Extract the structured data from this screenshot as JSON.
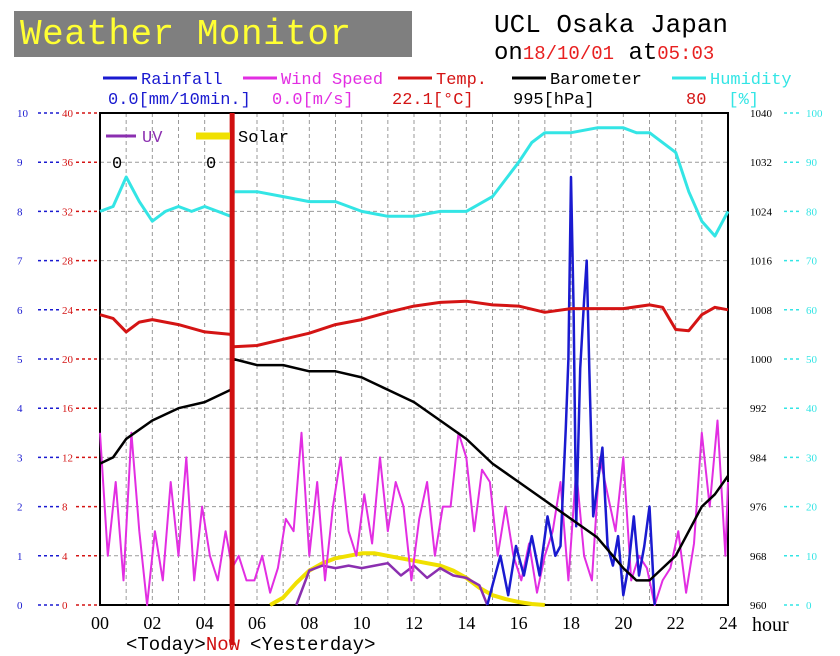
{
  "header": {
    "title": "Weather Monitor",
    "station": "UCL Osaka Japan",
    "on_label": "on",
    "date": "18/10/01",
    "at_label": "at",
    "time": "05:03",
    "hour_unit": "hour",
    "today_label": "<Today>",
    "now_label": "Now",
    "yesterday_label": "<Yesterday>"
  },
  "colors": {
    "rainfall": "#1a1ad0",
    "wind": "#e22ee2",
    "temp": "#d41414",
    "baro": "#000000",
    "humidity": "#33e5e5",
    "uv": "#8b2fb0",
    "solar": "#f0e000",
    "now_line": "#d01010",
    "grid": "#9a9a9a"
  },
  "chart_data": {
    "type": "line",
    "title": "Weather Monitor",
    "xlabel": "hour",
    "x_ticks": [
      "00",
      "02",
      "04",
      "06",
      "08",
      "10",
      "12",
      "14",
      "16",
      "18",
      "20",
      "22",
      "24"
    ],
    "xlim": [
      0,
      24
    ],
    "now_hour": 5.05,
    "axes": {
      "rainfall_mm": {
        "range": [
          0,
          10
        ],
        "ticks": [
          "0",
          "1",
          "2",
          "3",
          "4",
          "5",
          "6",
          "7",
          "8",
          "9",
          "10"
        ],
        "unit": "mm/10min."
      },
      "temperature_c": {
        "range": [
          0,
          40
        ],
        "ticks": [
          "0",
          "4",
          "8",
          "12",
          "16",
          "20",
          "24",
          "28",
          "32",
          "36",
          "40"
        ],
        "unit": "°C"
      },
      "barometer_hpa": {
        "range": [
          960,
          1040
        ],
        "ticks": [
          "960",
          "968",
          "976",
          "984",
          "992",
          "1000",
          "1008",
          "1016",
          "1024",
          "1032",
          "1040"
        ],
        "unit": "hPa"
      },
      "humidity_pct": {
        "range": [
          0,
          100
        ],
        "ticks": [
          "0",
          "10",
          "20",
          "30",
          "40",
          "50",
          "60",
          "70",
          "80",
          "90",
          "100"
        ],
        "unit": "%"
      }
    },
    "legend": [
      {
        "name": "Rainfall",
        "reading": "0.0",
        "unit": "[mm/10min.]"
      },
      {
        "name": "Wind Speed",
        "reading": "0.0",
        "unit": "[m/s]"
      },
      {
        "name": "Temp.",
        "reading": "22.1",
        "unit": "[°C]"
      },
      {
        "name": "Barometer",
        "reading": "995",
        "unit": "[hPa]"
      },
      {
        "name": "Humidity",
        "reading": "80",
        "unit": "[%]"
      },
      {
        "name": "UV",
        "reading": "0"
      },
      {
        "name": "Solar",
        "reading": "0"
      }
    ],
    "series": [
      {
        "name": "Humidity",
        "axis": "humidity_pct",
        "x": [
          0,
          0.5,
          1,
          1.5,
          2,
          2.5,
          3,
          3.5,
          4,
          4.5,
          5,
          5.1,
          6,
          7,
          8,
          9,
          10,
          11,
          12,
          13,
          14,
          15,
          16,
          16.5,
          17,
          18,
          19,
          20,
          20.5,
          21,
          22,
          22.5,
          23,
          23.5,
          24
        ],
        "y": [
          80,
          81,
          87,
          82,
          78,
          80,
          81,
          80,
          81,
          80,
          79,
          84,
          84,
          83,
          82,
          82,
          80,
          79,
          79,
          80,
          80,
          83,
          90,
          94,
          96,
          96,
          97,
          97,
          96,
          96,
          92,
          84,
          78,
          75,
          80
        ]
      },
      {
        "name": "Temp.",
        "axis": "temperature_c",
        "x": [
          0,
          0.5,
          1,
          1.5,
          2,
          3,
          4,
          5,
          5.1,
          6,
          7,
          8,
          9,
          10,
          11,
          12,
          13,
          14,
          15,
          16,
          17,
          18,
          19,
          20,
          21,
          21.5,
          22,
          22.5,
          23,
          23.5,
          24
        ],
        "y": [
          23.6,
          23.3,
          22.2,
          23.0,
          23.2,
          22.8,
          22.2,
          22.0,
          21.0,
          21.1,
          21.6,
          22.1,
          22.8,
          23.2,
          23.8,
          24.3,
          24.6,
          24.7,
          24.4,
          24.3,
          23.8,
          24.1,
          24.1,
          24.1,
          24.4,
          24.2,
          22.4,
          22.3,
          23.6,
          24.2,
          24.0
        ]
      },
      {
        "name": "Barometer",
        "axis": "barometer_hpa",
        "x": [
          0,
          0.5,
          1,
          2,
          3,
          4,
          5,
          5.1,
          6,
          7,
          8,
          9,
          10,
          11,
          12,
          13,
          14,
          15,
          16,
          17,
          18,
          19,
          20,
          20.5,
          21,
          21.5,
          22,
          22.5,
          23,
          23.5,
          24
        ],
        "y": [
          983,
          984,
          987,
          990,
          992,
          993,
          995,
          1000,
          999,
          999,
          998,
          998,
          997,
          995,
          993,
          990,
          987,
          983,
          980,
          977,
          974,
          971,
          966,
          964,
          964,
          966,
          968,
          972,
          976,
          978,
          981
        ]
      },
      {
        "name": "Wind Speed",
        "axis": "temperature_c",
        "x": [
          0,
          0.3,
          0.6,
          0.9,
          1.2,
          1.5,
          1.8,
          2.1,
          2.4,
          2.7,
          3,
          3.3,
          3.6,
          3.9,
          4.2,
          4.5,
          4.8,
          5.05,
          5.3,
          5.6,
          5.9,
          6.2,
          6.5,
          6.8,
          7.1,
          7.4,
          7.7,
          8,
          8.3,
          8.6,
          8.9,
          9.2,
          9.5,
          9.8,
          10.1,
          10.4,
          10.7,
          11,
          11.3,
          11.6,
          11.9,
          12.2,
          12.5,
          12.8,
          13.1,
          13.4,
          13.7,
          14,
          14.3,
          14.6,
          14.9,
          15.2,
          15.5,
          15.8,
          16.1,
          16.4,
          16.7,
          17,
          17.3,
          17.6,
          17.9,
          18.2,
          18.5,
          18.8,
          19.1,
          19.4,
          19.7,
          20,
          20.3,
          20.6,
          20.9,
          21.2,
          21.5,
          21.8,
          22.1,
          22.4,
          22.7,
          23,
          23.3,
          23.6,
          23.9,
          24
        ],
        "y": [
          14,
          4,
          10,
          2,
          14,
          6,
          0,
          6,
          2,
          10,
          4,
          12,
          2,
          8,
          4,
          2,
          6,
          3,
          4,
          2,
          2,
          4,
          1,
          3,
          7,
          6,
          14,
          4,
          10,
          2,
          8,
          12,
          6,
          4,
          9,
          5,
          12,
          6,
          10,
          8,
          2,
          7,
          10,
          4,
          8,
          8,
          14,
          12,
          6,
          11,
          10,
          4,
          8,
          4,
          2,
          5,
          1,
          4,
          6,
          10,
          2,
          11,
          4,
          2,
          12,
          9,
          6,
          12,
          2,
          4,
          3,
          0,
          2,
          3,
          6,
          1,
          5,
          14,
          8,
          15,
          4,
          10
        ]
      },
      {
        "name": "Rainfall",
        "axis": "rainfall_mm",
        "x": [
          14.8,
          15,
          15.3,
          15.6,
          15.9,
          16.2,
          16.5,
          16.8,
          17.1,
          17.4,
          17.6,
          17.8,
          17.9,
          18,
          18.1,
          18.2,
          18.35,
          18.5,
          18.6,
          18.7,
          18.85,
          19,
          19.2,
          19.4,
          19.6,
          19.8,
          20,
          20.2,
          20.4,
          20.6,
          20.8,
          21,
          21.2
        ],
        "y": [
          0,
          0.4,
          1.0,
          0.2,
          1.2,
          0.6,
          1.4,
          0.6,
          1.8,
          1.0,
          1.2,
          3.6,
          5.0,
          8.7,
          6.0,
          1.6,
          4.8,
          6.2,
          7.0,
          4.8,
          1.8,
          2.4,
          3.2,
          1.2,
          0.8,
          1.4,
          0.2,
          0.8,
          1.8,
          0.6,
          1.2,
          2.0,
          0
        ]
      },
      {
        "name": "UV",
        "axis": "rainfall_mm",
        "x": [
          7.5,
          8,
          8.5,
          9,
          9.5,
          10,
          10.5,
          11,
          11.5,
          12,
          12.5,
          13,
          13.5,
          14,
          14.5,
          14.8
        ],
        "y": [
          0,
          0.7,
          0.8,
          0.75,
          0.8,
          0.75,
          0.8,
          0.85,
          0.6,
          0.8,
          0.55,
          0.75,
          0.6,
          0.55,
          0.4,
          0
        ]
      },
      {
        "name": "Solar",
        "axis": "rainfall_mm",
        "x": [
          6.5,
          7,
          7.5,
          8,
          8.5,
          9,
          9.5,
          10,
          10.5,
          11,
          11.5,
          12,
          12.5,
          13,
          13.5,
          14,
          14.5,
          15,
          15.5,
          16,
          16.5,
          17
        ],
        "y": [
          0,
          0.15,
          0.45,
          0.7,
          0.85,
          0.95,
          1.0,
          1.05,
          1.05,
          1.0,
          0.95,
          0.9,
          0.85,
          0.8,
          0.7,
          0.55,
          0.35,
          0.2,
          0.12,
          0.06,
          0.02,
          0
        ]
      }
    ]
  }
}
